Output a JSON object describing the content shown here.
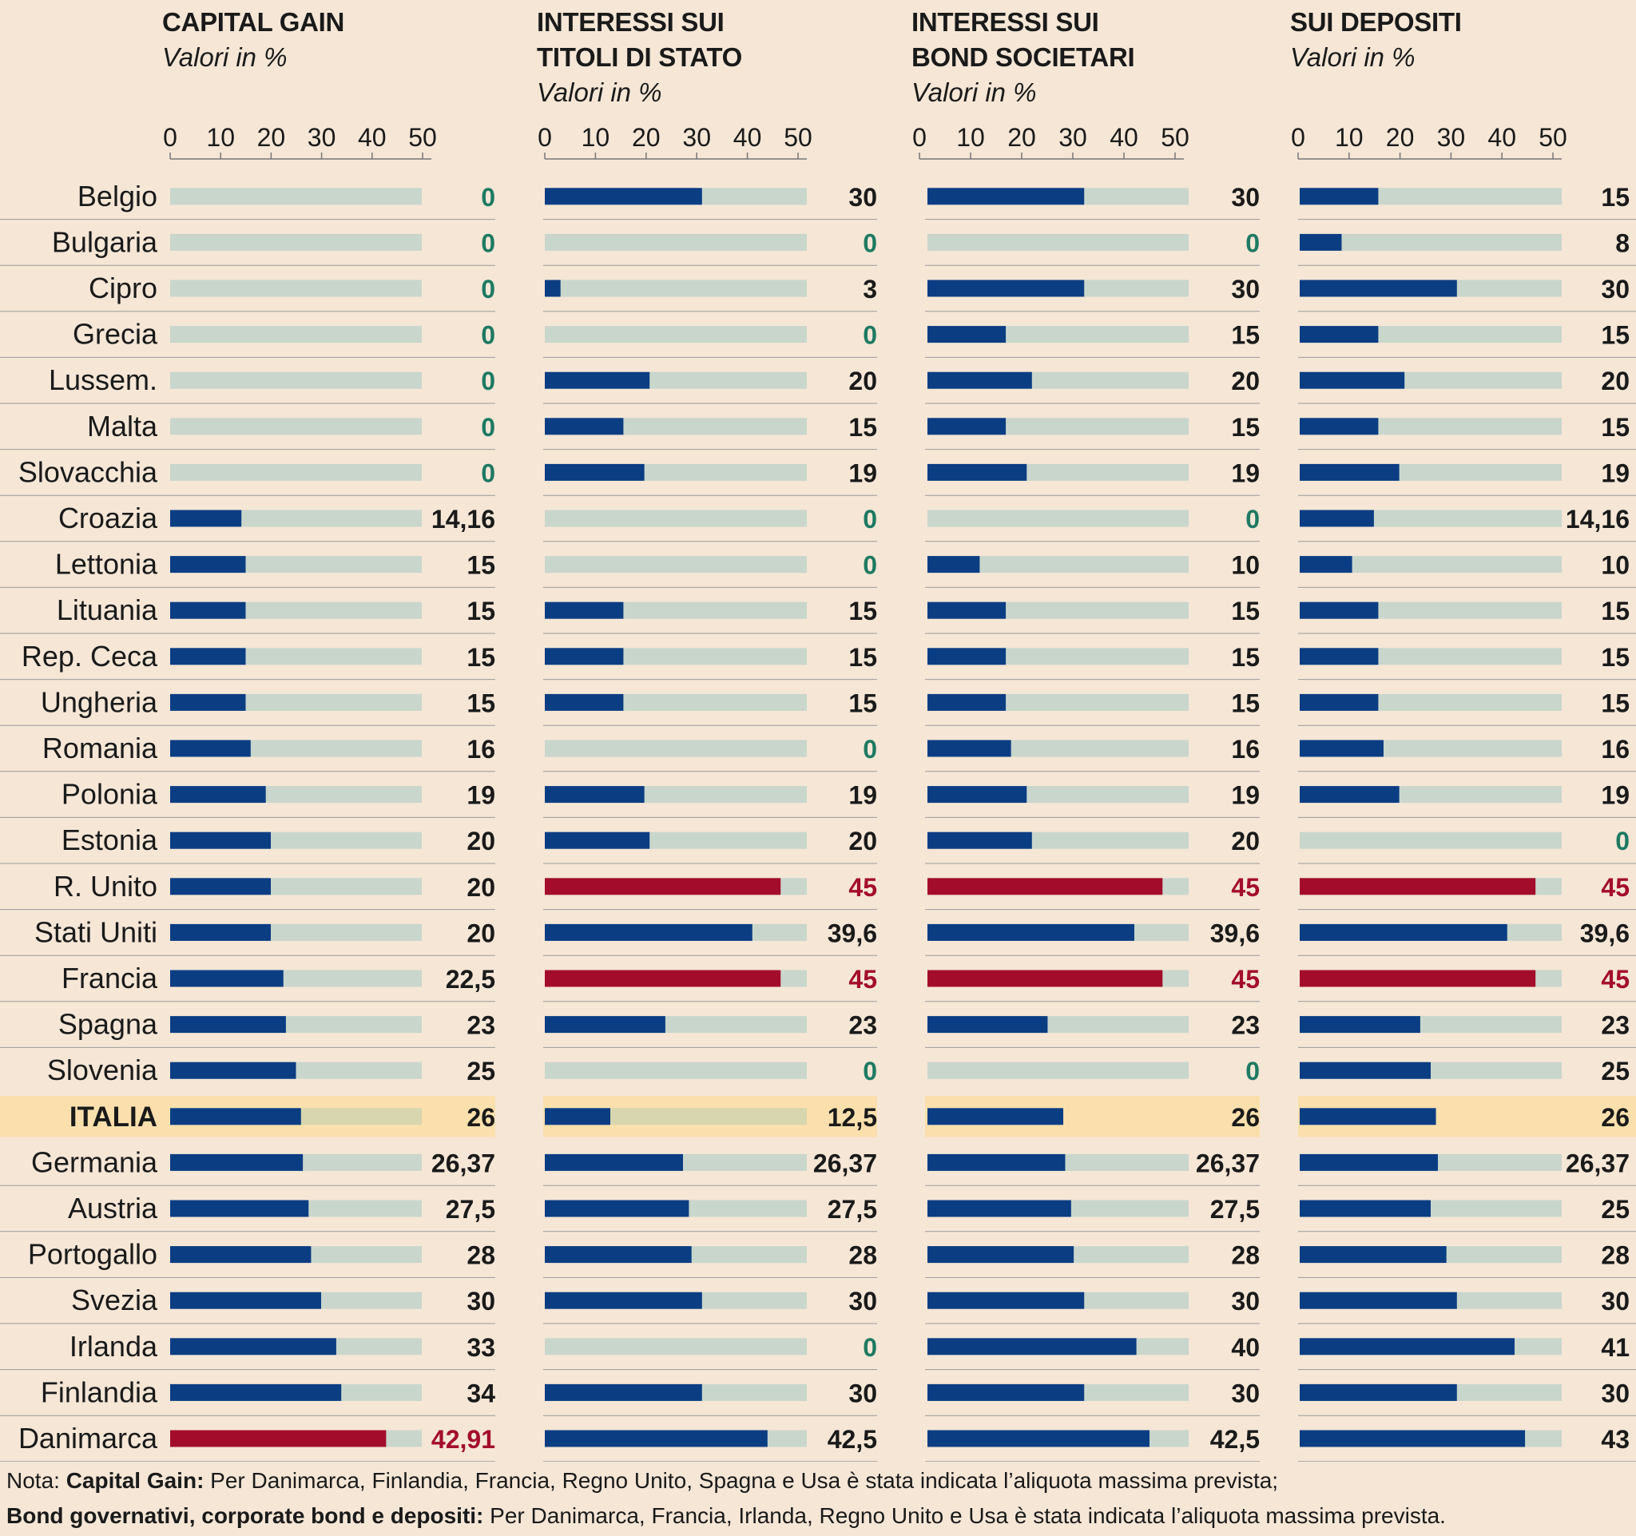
{
  "colors": {
    "background": "#f5e6d6",
    "track": "#c9d6cc",
    "bar": "#0b3d83",
    "max_bar": "#a30d2b",
    "zero_label": "#1e7a62",
    "highlight_band": "#fbe0ad",
    "highlight_track": "#d7d6ae"
  },
  "chart_data": {
    "type": "bar",
    "orientation": "horizontal",
    "highlight_category": "ITALIA",
    "categories": [
      "Belgio",
      "Bulgaria",
      "Cipro",
      "Grecia",
      "Lussem.",
      "Malta",
      "Slovacchia",
      "Croazia",
      "Lettonia",
      "Lituania",
      "Rep. Ceca",
      "Ungheria",
      "Romania",
      "Polonia",
      "Estonia",
      "R. Unito",
      "Stati Uniti",
      "Francia",
      "Spagna",
      "Slovenia",
      "ITALIA",
      "Germania",
      "Austria",
      "Portogallo",
      "Svezia",
      "Irlanda",
      "Finlandia",
      "Danimarca"
    ],
    "series": [
      {
        "name": "CAPITAL GAIN",
        "title_lines": [
          "CAPITAL GAIN"
        ],
        "subtitle": "Valori in %",
        "xlim": [
          0,
          50
        ],
        "ticks": [
          "0",
          "10",
          "20",
          "30",
          "40",
          "50"
        ],
        "values": [
          0,
          0,
          0,
          0,
          0,
          0,
          0,
          14.16,
          15,
          15,
          15,
          15,
          16,
          19,
          20,
          20,
          20,
          22.5,
          23,
          25,
          26,
          26.37,
          27.5,
          28,
          30,
          33,
          34,
          42.91
        ],
        "labels": [
          "0",
          "0",
          "0",
          "0",
          "0",
          "0",
          "0",
          "14,16",
          "15",
          "15",
          "15",
          "15",
          "16",
          "19",
          "20",
          "20",
          "20",
          "22,5",
          "23",
          "25",
          "26",
          "26,37",
          "27,5",
          "28",
          "30",
          "33",
          "34",
          "42,91"
        ],
        "highlighted_max": [
          "Danimarca"
        ]
      },
      {
        "name": "INTERESSI SUI TITOLI DI STATO",
        "title_lines": [
          "INTERESSI SUI",
          "TITOLI DI STATO"
        ],
        "subtitle": "Valori in %",
        "xlim": [
          0,
          50
        ],
        "ticks": [
          "0",
          "10",
          "20",
          "30",
          "40",
          "50"
        ],
        "values": [
          30,
          0,
          3,
          0,
          20,
          15,
          19,
          0,
          0,
          15,
          15,
          15,
          0,
          19,
          20,
          45,
          39.6,
          45,
          23,
          0,
          12.5,
          26.37,
          27.5,
          28,
          30,
          0,
          30,
          42.5
        ],
        "labels": [
          "30",
          "0",
          "3",
          "0",
          "20",
          "15",
          "19",
          "0",
          "0",
          "15",
          "15",
          "15",
          "0",
          "19",
          "20",
          "45",
          "39,6",
          "45",
          "23",
          "0",
          "12,5",
          "26,37",
          "27,5",
          "28",
          "30",
          "0",
          "30",
          "42,5"
        ],
        "highlighted_max": [
          "R. Unito",
          "Francia"
        ]
      },
      {
        "name": "INTERESSI SUI BOND SOCIETARI",
        "title_lines": [
          "INTERESSI SUI",
          "BOND SOCIETARI"
        ],
        "subtitle": "Valori in %",
        "xlim": [
          0,
          50
        ],
        "ticks": [
          "0",
          "10",
          "20",
          "30",
          "40",
          "50"
        ],
        "values": [
          30,
          0,
          30,
          15,
          20,
          15,
          19,
          0,
          10,
          15,
          15,
          15,
          16,
          19,
          20,
          45,
          39.6,
          45,
          23,
          0,
          26,
          26.37,
          27.5,
          28,
          30,
          40,
          30,
          42.5
        ],
        "labels": [
          "30",
          "0",
          "30",
          "15",
          "20",
          "15",
          "19",
          "0",
          "10",
          "15",
          "15",
          "15",
          "16",
          "19",
          "20",
          "45",
          "39,6",
          "45",
          "23",
          "0",
          "26",
          "26,37",
          "27,5",
          "28",
          "30",
          "40",
          "30",
          "42,5"
        ],
        "highlighted_max": [
          "R. Unito",
          "Francia"
        ]
      },
      {
        "name": "SUI DEPOSITI",
        "title_lines": [
          "SUI DEPOSITI"
        ],
        "subtitle": "Valori in %",
        "xlim": [
          0,
          50
        ],
        "ticks": [
          "0",
          "10",
          "20",
          "30",
          "40",
          "50"
        ],
        "values": [
          15,
          8,
          30,
          15,
          20,
          15,
          19,
          14.16,
          10,
          15,
          15,
          15,
          16,
          19,
          0,
          45,
          39.6,
          45,
          23,
          25,
          26,
          26.37,
          25,
          28,
          30,
          41,
          30,
          43
        ],
        "labels": [
          "15",
          "8",
          "30",
          "15",
          "20",
          "15",
          "19",
          "14,16",
          "10",
          "15",
          "15",
          "15",
          "16",
          "19",
          "0",
          "45",
          "39,6",
          "45",
          "23",
          "25",
          "26",
          "26,37",
          "25",
          "28",
          "30",
          "41",
          "30",
          "43"
        ],
        "highlighted_max": [
          "R. Unito",
          "Francia"
        ]
      }
    ]
  },
  "footnote": {
    "line1_prefix": "Nota: ",
    "line1_label": "Capital Gain:",
    "line1_text": " Per Danimarca, Finlandia, Francia, Regno Unito, Spagna e Usa è stata indicata l’aliquota massima prevista;",
    "line2_label": "Bond governativi, corporate bond e depositi:",
    "line2_text": " Per Danimarca, Francia, Irlanda, Regno Unito e Usa è stata indicata l’aliquota massima prevista."
  }
}
